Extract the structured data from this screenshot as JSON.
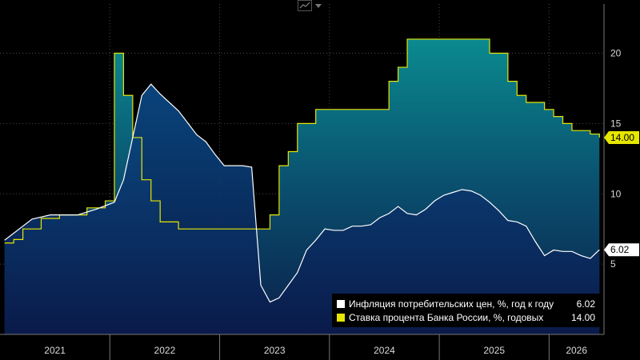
{
  "toolbar": {
    "icon": "line-chart-icon",
    "dropdown_icon": "chevron-down-icon"
  },
  "chart_data": {
    "type": "line",
    "xlim": [
      "2021-01",
      "2026-06"
    ],
    "ylim": [
      0,
      23.5
    ],
    "y_ticks": [
      5,
      10,
      15,
      20
    ],
    "x_ticks": [
      "2021",
      "2022",
      "2023",
      "2024",
      "2025",
      "2026"
    ],
    "grid": true,
    "legend_position": "bottom-right",
    "series": [
      {
        "name": "Инфляция потребительских цен, %, год к году",
        "color": "#ffffff",
        "fill": "navy-gradient",
        "last_value": "6.02",
        "points": [
          [
            "2021-01",
            6.7
          ],
          [
            "2021-04",
            8.2
          ],
          [
            "2021-06",
            8.5
          ],
          [
            "2021-09",
            8.5
          ],
          [
            "2021-11",
            8.9
          ],
          [
            "2022-01",
            9.4
          ],
          [
            "2022-02",
            11.0
          ],
          [
            "2022-04",
            17.0
          ],
          [
            "2022-05",
            17.8
          ],
          [
            "2022-06",
            17.1
          ],
          [
            "2022-08",
            15.9
          ],
          [
            "2022-10",
            14.2
          ],
          [
            "2022-11",
            13.7
          ],
          [
            "2022-12",
            12.8
          ],
          [
            "2023-01",
            12.0
          ],
          [
            "2023-03",
            12.0
          ],
          [
            "2023-04",
            11.9
          ],
          [
            "2023-05",
            3.5
          ],
          [
            "2023-06",
            2.3
          ],
          [
            "2023-07",
            2.6
          ],
          [
            "2023-08",
            3.5
          ],
          [
            "2023-09",
            4.4
          ],
          [
            "2023-10",
            6.0
          ],
          [
            "2023-11",
            6.7
          ],
          [
            "2023-12",
            7.5
          ],
          [
            "2024-01",
            7.4
          ],
          [
            "2024-02",
            7.4
          ],
          [
            "2024-03",
            7.7
          ],
          [
            "2024-04",
            7.7
          ],
          [
            "2024-05",
            7.8
          ],
          [
            "2024-06",
            8.3
          ],
          [
            "2024-07",
            8.6
          ],
          [
            "2024-08",
            9.1
          ],
          [
            "2024-09",
            8.6
          ],
          [
            "2024-10",
            8.5
          ],
          [
            "2024-11",
            8.9
          ],
          [
            "2024-12",
            9.5
          ],
          [
            "2025-01",
            9.9
          ],
          [
            "2025-02",
            10.1
          ],
          [
            "2025-03",
            10.3
          ],
          [
            "2025-04",
            10.2
          ],
          [
            "2025-05",
            9.9
          ],
          [
            "2025-06",
            9.4
          ],
          [
            "2025-07",
            8.8
          ],
          [
            "2025-08",
            8.1
          ],
          [
            "2025-09",
            8.0
          ],
          [
            "2025-10",
            7.7
          ],
          [
            "2025-11",
            6.6
          ],
          [
            "2025-12",
            5.6
          ],
          [
            "2026-01",
            6.0
          ],
          [
            "2026-02",
            5.9
          ],
          [
            "2026-03",
            5.9
          ],
          [
            "2026-04",
            5.6
          ],
          [
            "2026-05",
            5.4
          ],
          [
            "2026-06",
            6.02
          ]
        ]
      },
      {
        "name": "Ставка процента Банка России, %, годовых",
        "color": "#e6e600",
        "fill": "teal-gradient",
        "last_value": "14.00",
        "points": [
          [
            "2021-01",
            6.5
          ],
          [
            "2021-02",
            6.75
          ],
          [
            "2021-03",
            7.5
          ],
          [
            "2021-05",
            8.25
          ],
          [
            "2021-07",
            8.5
          ],
          [
            "2021-10",
            9.0
          ],
          [
            "2021-12",
            9.5
          ],
          [
            "2022-01",
            20.0
          ],
          [
            "2022-02",
            17.0
          ],
          [
            "2022-03",
            14.0
          ],
          [
            "2022-04",
            11.0
          ],
          [
            "2022-05",
            9.5
          ],
          [
            "2022-06",
            8.0
          ],
          [
            "2022-08",
            7.5
          ],
          [
            "2023-06",
            8.5
          ],
          [
            "2023-07",
            12.0
          ],
          [
            "2023-08",
            13.0
          ],
          [
            "2023-09",
            15.0
          ],
          [
            "2023-11",
            16.0
          ],
          [
            "2024-07",
            18.0
          ],
          [
            "2024-08",
            19.0
          ],
          [
            "2024-09",
            21.0
          ],
          [
            "2025-06",
            20.0
          ],
          [
            "2025-08",
            18.0
          ],
          [
            "2025-09",
            17.0
          ],
          [
            "2025-10",
            16.5
          ],
          [
            "2025-12",
            16.0
          ],
          [
            "2026-01",
            15.5
          ],
          [
            "2026-02",
            15.0
          ],
          [
            "2026-03",
            14.5
          ],
          [
            "2026-05",
            14.25
          ],
          [
            "2026-06",
            14.0
          ]
        ]
      }
    ]
  },
  "legend": {
    "items": [
      {
        "name": "Инфляция потребительских цен, %, год к году",
        "value": "6.02",
        "color": "#ffffff"
      },
      {
        "name": "Ставка процента Банка России, %, годовых",
        "value": "14.00",
        "color": "#e6e600"
      }
    ]
  }
}
